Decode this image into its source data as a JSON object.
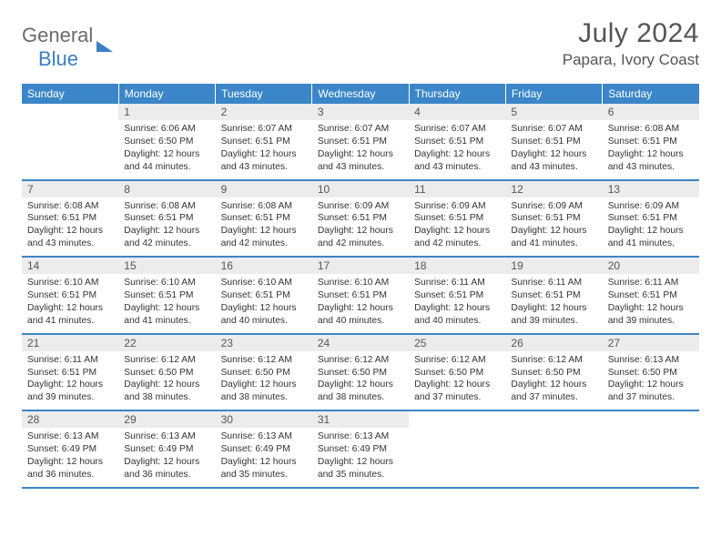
{
  "logo": {
    "line1": "General",
    "line2": "Blue"
  },
  "header": {
    "title": "July 2024",
    "location": "Papara, Ivory Coast"
  },
  "colors": {
    "header_bg": "#3a86c8",
    "daynum_bg": "#ececec",
    "row_border": "#3a86c8",
    "logo_gray": "#6b6b6b",
    "logo_blue": "#3a7fc4",
    "text": "#333333",
    "bg": "#ffffff"
  },
  "dayNames": [
    "Sunday",
    "Monday",
    "Tuesday",
    "Wednesday",
    "Thursday",
    "Friday",
    "Saturday"
  ],
  "firstWeekday": 1,
  "daysInMonth": 31,
  "days": {
    "1": {
      "sunrise": "6:06 AM",
      "sunset": "6:50 PM",
      "daylight": "12 hours and 44 minutes."
    },
    "2": {
      "sunrise": "6:07 AM",
      "sunset": "6:51 PM",
      "daylight": "12 hours and 43 minutes."
    },
    "3": {
      "sunrise": "6:07 AM",
      "sunset": "6:51 PM",
      "daylight": "12 hours and 43 minutes."
    },
    "4": {
      "sunrise": "6:07 AM",
      "sunset": "6:51 PM",
      "daylight": "12 hours and 43 minutes."
    },
    "5": {
      "sunrise": "6:07 AM",
      "sunset": "6:51 PM",
      "daylight": "12 hours and 43 minutes."
    },
    "6": {
      "sunrise": "6:08 AM",
      "sunset": "6:51 PM",
      "daylight": "12 hours and 43 minutes."
    },
    "7": {
      "sunrise": "6:08 AM",
      "sunset": "6:51 PM",
      "daylight": "12 hours and 43 minutes."
    },
    "8": {
      "sunrise": "6:08 AM",
      "sunset": "6:51 PM",
      "daylight": "12 hours and 42 minutes."
    },
    "9": {
      "sunrise": "6:08 AM",
      "sunset": "6:51 PM",
      "daylight": "12 hours and 42 minutes."
    },
    "10": {
      "sunrise": "6:09 AM",
      "sunset": "6:51 PM",
      "daylight": "12 hours and 42 minutes."
    },
    "11": {
      "sunrise": "6:09 AM",
      "sunset": "6:51 PM",
      "daylight": "12 hours and 42 minutes."
    },
    "12": {
      "sunrise": "6:09 AM",
      "sunset": "6:51 PM",
      "daylight": "12 hours and 41 minutes."
    },
    "13": {
      "sunrise": "6:09 AM",
      "sunset": "6:51 PM",
      "daylight": "12 hours and 41 minutes."
    },
    "14": {
      "sunrise": "6:10 AM",
      "sunset": "6:51 PM",
      "daylight": "12 hours and 41 minutes."
    },
    "15": {
      "sunrise": "6:10 AM",
      "sunset": "6:51 PM",
      "daylight": "12 hours and 41 minutes."
    },
    "16": {
      "sunrise": "6:10 AM",
      "sunset": "6:51 PM",
      "daylight": "12 hours and 40 minutes."
    },
    "17": {
      "sunrise": "6:10 AM",
      "sunset": "6:51 PM",
      "daylight": "12 hours and 40 minutes."
    },
    "18": {
      "sunrise": "6:11 AM",
      "sunset": "6:51 PM",
      "daylight": "12 hours and 40 minutes."
    },
    "19": {
      "sunrise": "6:11 AM",
      "sunset": "6:51 PM",
      "daylight": "12 hours and 39 minutes."
    },
    "20": {
      "sunrise": "6:11 AM",
      "sunset": "6:51 PM",
      "daylight": "12 hours and 39 minutes."
    },
    "21": {
      "sunrise": "6:11 AM",
      "sunset": "6:51 PM",
      "daylight": "12 hours and 39 minutes."
    },
    "22": {
      "sunrise": "6:12 AM",
      "sunset": "6:50 PM",
      "daylight": "12 hours and 38 minutes."
    },
    "23": {
      "sunrise": "6:12 AM",
      "sunset": "6:50 PM",
      "daylight": "12 hours and 38 minutes."
    },
    "24": {
      "sunrise": "6:12 AM",
      "sunset": "6:50 PM",
      "daylight": "12 hours and 38 minutes."
    },
    "25": {
      "sunrise": "6:12 AM",
      "sunset": "6:50 PM",
      "daylight": "12 hours and 37 minutes."
    },
    "26": {
      "sunrise": "6:12 AM",
      "sunset": "6:50 PM",
      "daylight": "12 hours and 37 minutes."
    },
    "27": {
      "sunrise": "6:13 AM",
      "sunset": "6:50 PM",
      "daylight": "12 hours and 37 minutes."
    },
    "28": {
      "sunrise": "6:13 AM",
      "sunset": "6:49 PM",
      "daylight": "12 hours and 36 minutes."
    },
    "29": {
      "sunrise": "6:13 AM",
      "sunset": "6:49 PM",
      "daylight": "12 hours and 36 minutes."
    },
    "30": {
      "sunrise": "6:13 AM",
      "sunset": "6:49 PM",
      "daylight": "12 hours and 35 minutes."
    },
    "31": {
      "sunrise": "6:13 AM",
      "sunset": "6:49 PM",
      "daylight": "12 hours and 35 minutes."
    }
  },
  "labels": {
    "sunrise": "Sunrise:",
    "sunset": "Sunset:",
    "daylight": "Daylight:"
  }
}
